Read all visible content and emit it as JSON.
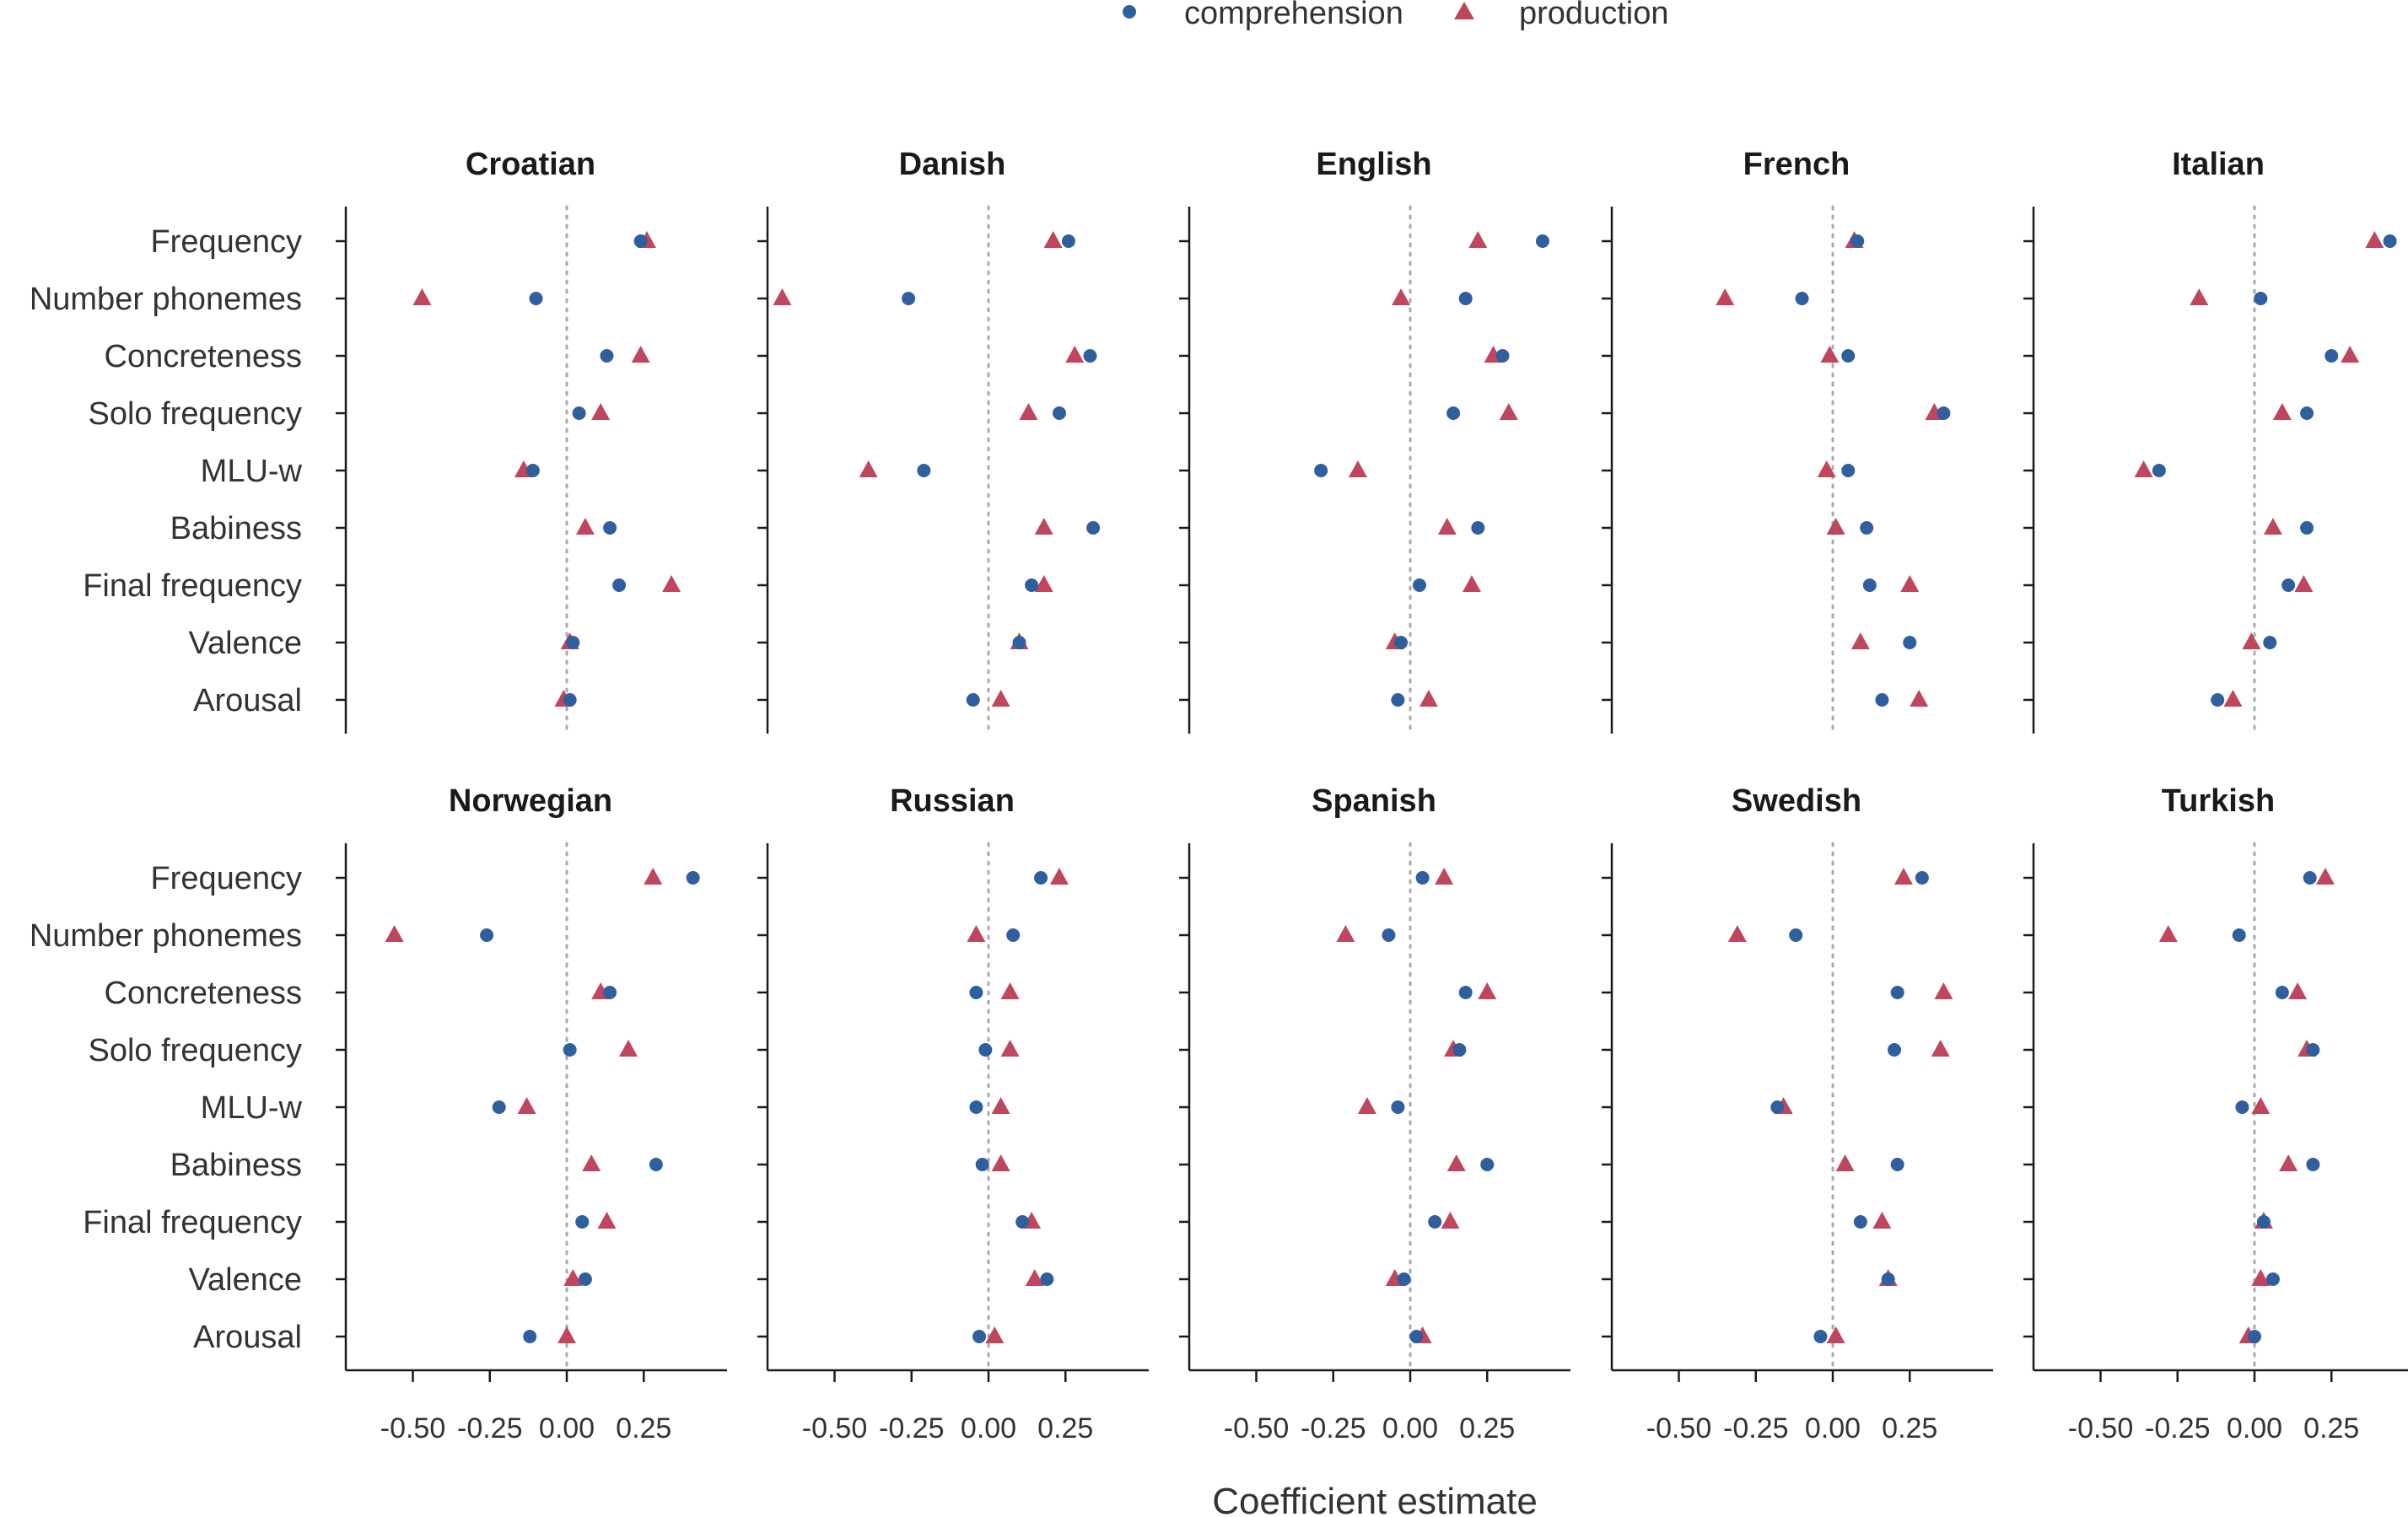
{
  "chart_data": {
    "type": "scatter",
    "xlabel": "Coefficient estimate",
    "xlim": [
      -0.8,
      0.45
    ],
    "xticks": [
      -0.5,
      -0.25,
      0.0,
      0.25
    ],
    "xtick_labels": [
      "-0.50",
      "-0.25",
      "0.00",
      "0.25"
    ],
    "reference_line": 0,
    "categories": [
      "Frequency",
      "Number phonemes",
      "Concreteness",
      "Solo frequency",
      "MLU-w",
      "Babiness",
      "Final frequency",
      "Valence",
      "Arousal"
    ],
    "legend": {
      "placement": "top-center",
      "entries": [
        {
          "name": "comprehension",
          "marker": "circle",
          "color": "#2f5f9e"
        },
        {
          "name": "production",
          "marker": "triangle",
          "color": "#c0465e"
        }
      ]
    },
    "panels": [
      {
        "title": "Croatian",
        "comprehension": [
          0.24,
          -0.1,
          0.13,
          0.04,
          -0.11,
          0.14,
          0.17,
          0.02,
          0.01
        ],
        "production": [
          0.26,
          -0.47,
          0.24,
          0.11,
          -0.14,
          0.06,
          0.34,
          0.01,
          -0.01
        ]
      },
      {
        "title": "Danish",
        "comprehension": [
          0.26,
          -0.26,
          0.33,
          0.23,
          -0.21,
          0.34,
          0.14,
          0.1,
          -0.05
        ],
        "production": [
          0.21,
          -0.67,
          0.28,
          0.13,
          -0.39,
          0.18,
          0.18,
          0.1,
          0.04
        ]
      },
      {
        "title": "English",
        "comprehension": [
          0.43,
          0.18,
          0.3,
          0.14,
          -0.29,
          0.22,
          0.03,
          -0.03,
          -0.04
        ],
        "production": [
          0.22,
          -0.03,
          0.27,
          0.32,
          -0.17,
          0.12,
          0.2,
          -0.05,
          0.06
        ]
      },
      {
        "title": "French",
        "comprehension": [
          0.08,
          -0.1,
          0.05,
          0.36,
          0.05,
          0.11,
          0.12,
          0.25,
          0.16
        ],
        "production": [
          0.07,
          -0.35,
          -0.01,
          0.33,
          -0.02,
          0.01,
          0.25,
          0.09,
          0.28
        ]
      },
      {
        "title": "Italian",
        "comprehension": [
          0.44,
          0.02,
          0.25,
          0.17,
          -0.31,
          0.17,
          0.11,
          0.05,
          -0.12
        ],
        "production": [
          0.39,
          -0.18,
          0.31,
          0.09,
          -0.36,
          0.06,
          0.16,
          -0.01,
          -0.07
        ]
      },
      {
        "title": "Norwegian",
        "comprehension": [
          0.41,
          -0.26,
          0.14,
          0.01,
          -0.22,
          0.29,
          0.05,
          0.06,
          -0.12
        ],
        "production": [
          0.28,
          -0.56,
          0.11,
          0.2,
          -0.13,
          0.08,
          0.13,
          0.02,
          0.0
        ]
      },
      {
        "title": "Russian",
        "comprehension": [
          0.17,
          0.08,
          -0.04,
          -0.01,
          -0.04,
          -0.02,
          0.11,
          0.19,
          -0.03
        ],
        "production": [
          0.23,
          -0.04,
          0.07,
          0.07,
          0.04,
          0.04,
          0.14,
          0.15,
          0.02
        ]
      },
      {
        "title": "Spanish",
        "comprehension": [
          0.04,
          -0.07,
          0.18,
          0.16,
          -0.04,
          0.25,
          0.08,
          -0.02,
          0.02
        ],
        "production": [
          0.11,
          -0.21,
          0.25,
          0.14,
          -0.14,
          0.15,
          0.13,
          -0.05,
          0.04
        ]
      },
      {
        "title": "Swedish",
        "comprehension": [
          0.29,
          -0.12,
          0.21,
          0.2,
          -0.18,
          0.21,
          0.09,
          0.18,
          -0.04
        ],
        "production": [
          0.23,
          -0.31,
          0.36,
          0.35,
          -0.16,
          0.04,
          0.16,
          0.18,
          0.01
        ]
      },
      {
        "title": "Turkish",
        "comprehension": [
          0.18,
          -0.05,
          0.09,
          0.19,
          -0.04,
          0.19,
          0.03,
          0.06,
          0.0
        ],
        "production": [
          0.23,
          -0.28,
          0.14,
          0.17,
          0.02,
          0.11,
          0.03,
          0.02,
          -0.02
        ]
      }
    ]
  }
}
